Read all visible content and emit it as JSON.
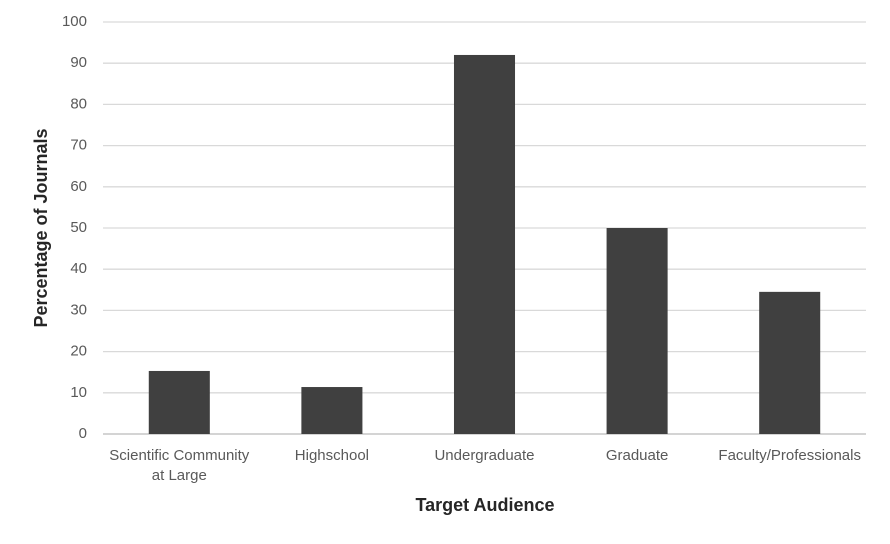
{
  "chart_data": {
    "type": "bar",
    "xlabel": "Target Audience",
    "ylabel": "Percentage of Journals",
    "categories": [
      "Scientific Community at Large",
      "Highschool",
      "Undergraduate",
      "Graduate",
      "Faculty/Professionals"
    ],
    "values": [
      15.3,
      11.4,
      92,
      50,
      34.5
    ],
    "color": "#404040",
    "ylim": [
      0,
      100
    ],
    "yticks": [
      0,
      10,
      20,
      30,
      40,
      50,
      60,
      70,
      80,
      90,
      100
    ],
    "grid": true
  }
}
